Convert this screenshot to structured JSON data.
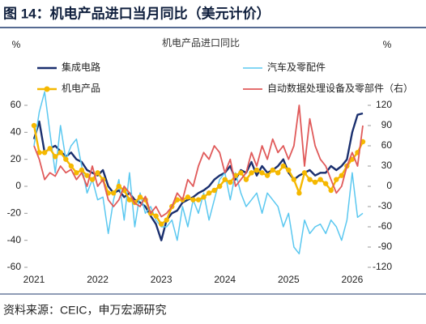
{
  "chart_data": {
    "type": "line",
    "title": "图 14：机电产品进口当月同比（美元计价）",
    "subtitle": "机电产品进口同比",
    "y_label": "%",
    "y2_label": "%",
    "source": "资料来源：CEIC，申万宏源研究",
    "legend": "top",
    "categories": [
      "2021",
      null,
      null,
      null,
      null,
      null,
      null,
      null,
      null,
      null,
      null,
      null,
      "2022",
      null,
      null,
      null,
      null,
      null,
      null,
      null,
      null,
      null,
      null,
      null,
      "2023",
      null,
      null,
      null,
      null,
      null,
      null,
      null,
      null,
      null,
      null,
      null,
      "2024",
      null,
      null,
      null,
      null,
      null,
      null,
      null,
      null,
      null,
      null,
      null,
      "2025",
      null,
      null,
      null,
      null,
      null,
      null,
      null,
      null,
      null,
      null,
      null,
      "2026",
      null,
      null
    ],
    "ylim": [
      -60,
      60
    ],
    "yticks": [
      -60,
      -40,
      -20,
      0,
      20,
      40,
      60
    ],
    "y2lim": [
      -120,
      120
    ],
    "y2ticks": [
      -120,
      -90,
      -60,
      -30,
      0,
      30,
      60,
      90,
      120
    ],
    "series": [
      {
        "name": "集成电路",
        "color": "#1a2f6e",
        "width": 2.4,
        "marker": false,
        "values": [
          35,
          48,
          25,
          28,
          30,
          26,
          22,
          25,
          20,
          18,
          12,
          10,
          8,
          12,
          0,
          -5,
          -3,
          -8,
          -5,
          -10,
          -12,
          -15,
          -22,
          -28,
          -40,
          -25,
          -20,
          -18,
          -12,
          -10,
          -8,
          -5,
          -3,
          0,
          5,
          8,
          10,
          15,
          5,
          12,
          10,
          18,
          8,
          15,
          10,
          12,
          15,
          20,
          10,
          5,
          8,
          10,
          12,
          8,
          10,
          10,
          15,
          12,
          15,
          20,
          40,
          53,
          54
        ]
      },
      {
        "name": "汽车及零配件",
        "color": "#5bc8f0",
        "width": 1.5,
        "marker": false,
        "values": [
          30,
          55,
          70,
          40,
          10,
          45,
          20,
          30,
          35,
          15,
          -5,
          5,
          -10,
          -8,
          -35,
          -10,
          5,
          -25,
          10,
          -30,
          -5,
          -20,
          -15,
          -25,
          -30,
          -30,
          -25,
          -40,
          -15,
          -30,
          -10,
          -20,
          -5,
          -25,
          -10,
          5,
          10,
          -10,
          10,
          -5,
          -15,
          -10,
          -5,
          -20,
          -5,
          -10,
          -15,
          -30,
          -20,
          -45,
          -50,
          -25,
          -35,
          -30,
          -28,
          -35,
          -25,
          -30,
          -40,
          -25,
          10,
          -23,
          -20
        ]
      },
      {
        "name": "机电产品",
        "color": "#f5b800",
        "width": 2.4,
        "marker": true,
        "values": [
          45,
          25,
          25,
          28,
          22,
          25,
          20,
          15,
          10,
          12,
          8,
          5,
          10,
          5,
          -5,
          -5,
          0,
          -3,
          -10,
          -12,
          -8,
          -10,
          -20,
          -22,
          -28,
          -25,
          -15,
          -10,
          -10,
          -8,
          -10,
          -10,
          -8,
          -5,
          -3,
          0,
          5,
          3,
          8,
          10,
          5,
          10,
          12,
          10,
          8,
          12,
          10,
          15,
          12,
          5,
          -5,
          10,
          5,
          3,
          5,
          2,
          -3,
          5,
          8,
          15,
          20,
          25,
          33
        ]
      },
      {
        "name": "自动数据处理设备及零部件（右）",
        "color": "#e05a5a",
        "width": 1.8,
        "marker": false,
        "axis": "y2",
        "values": [
          60,
          40,
          10,
          20,
          15,
          30,
          20,
          25,
          10,
          20,
          0,
          30,
          0,
          10,
          -20,
          -30,
          -20,
          0,
          -10,
          -25,
          -30,
          -15,
          -40,
          -30,
          -45,
          -40,
          -30,
          -10,
          -20,
          10,
          0,
          30,
          50,
          40,
          60,
          50,
          20,
          40,
          0,
          10,
          20,
          50,
          30,
          60,
          40,
          70,
          50,
          60,
          40,
          60,
          120,
          30,
          100,
          60,
          40,
          30,
          10,
          -10,
          0,
          30,
          50,
          30,
          90
        ]
      }
    ]
  }
}
